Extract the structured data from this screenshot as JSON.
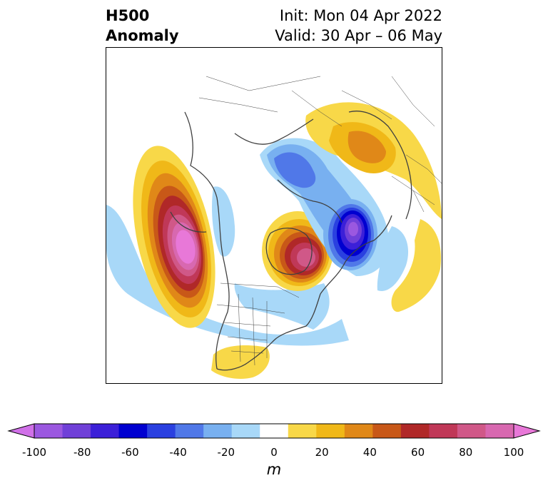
{
  "header": {
    "title_line1": "H500",
    "title_line2": "Anomaly",
    "init": "Init: Mon 04 Apr 2022",
    "valid": "Valid: 30 Apr – 06 May"
  },
  "colorbar": {
    "ticks": [
      "-100",
      "-80",
      "-60",
      "-40",
      "-20",
      "0",
      "20",
      "40",
      "60",
      "80",
      "100"
    ],
    "unit": "m",
    "colors": [
      "#d070e8",
      "#9b58e0",
      "#7040d8",
      "#3c20d8",
      "#0000d0",
      "#2a40e0",
      "#5078e8",
      "#78b0f0",
      "#a8d8f8",
      "#ffffff",
      "#f8d848",
      "#f0b818",
      "#e08818",
      "#c85818",
      "#b02828",
      "#c03858",
      "#d05888",
      "#d868b0",
      "#e878d8"
    ]
  },
  "map": {
    "projection": "north-polar-stereographic",
    "field": "500 hPa geopotential height anomaly"
  }
}
